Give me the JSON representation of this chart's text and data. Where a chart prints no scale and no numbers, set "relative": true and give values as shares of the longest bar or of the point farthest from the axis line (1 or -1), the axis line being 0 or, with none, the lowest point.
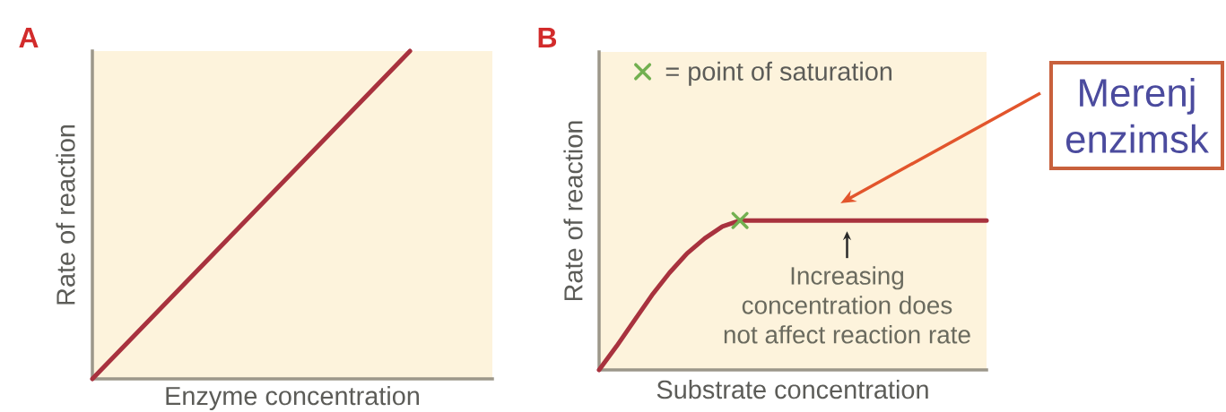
{
  "chart_data": [
    {
      "type": "line",
      "title": "A",
      "xlabel": "Enzyme concentration",
      "ylabel": "Rate of reaction",
      "relative": true,
      "categories": [
        null,
        null
      ],
      "values": [
        0,
        1
      ],
      "color": "#a8323e"
    },
    {
      "type": "line",
      "title": "B",
      "xlabel": "Substrate concentration",
      "ylabel": "Rate of reaction",
      "relative": true,
      "legend": "top left",
      "categories": [
        null,
        null,
        null,
        null,
        null,
        null,
        null,
        null,
        null,
        null,
        null,
        null,
        null,
        null,
        null,
        null,
        null,
        null,
        null,
        null,
        null,
        null,
        null
      ],
      "series": [
        {
          "color": "#a8323e",
          "values": [
            0,
            0.16,
            0.33,
            0.5,
            0.65,
            0.78,
            0.88,
            0.96,
            1,
            1,
            1,
            1,
            1,
            1,
            1,
            1,
            1,
            1,
            1,
            1,
            1,
            1,
            1
          ]
        },
        {
          "name": "= point of saturation",
          "color": "#72b050",
          "marker": "cross",
          "values": [
            null,
            null,
            null,
            null,
            null,
            null,
            null,
            null,
            1,
            null,
            null,
            null,
            null,
            null,
            null,
            null,
            null,
            null,
            null,
            null,
            null,
            null,
            null
          ]
        }
      ],
      "annotations": [
        {
          "text": "Increasing concentration does not affect reaction rate",
          "y": 1
        },
        "Merenj enzimsk"
      ]
    }
  ]
}
